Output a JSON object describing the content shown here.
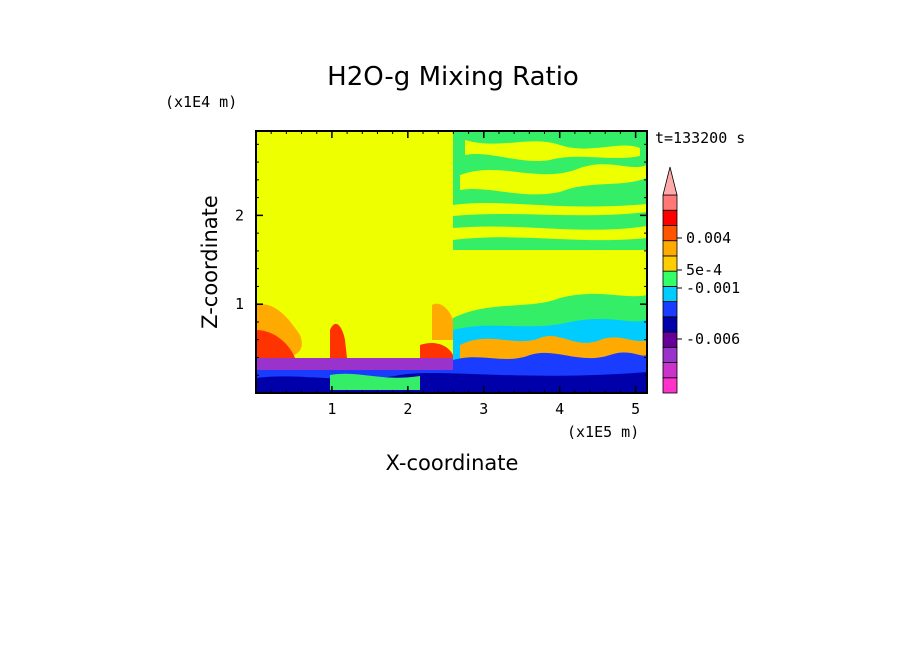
{
  "chart_data": {
    "type": "heatmap",
    "title": "H2O-g Mixing Ratio",
    "xlabel": "X-coordinate",
    "ylabel": "Z-coordinate",
    "x_unit": "(x1E5 m)",
    "y_unit": "(x1E4 m)",
    "time_label": "t=133200 s",
    "xlim": [
      0,
      5.15
    ],
    "ylim": [
      0,
      2.95
    ],
    "x_ticks": [
      "1",
      "2",
      "3",
      "4",
      "5"
    ],
    "x_tick_values": [
      1,
      2,
      3,
      4,
      5
    ],
    "y_ticks": [
      "1",
      "2"
    ],
    "y_tick_values": [
      1,
      2
    ],
    "colorbar": {
      "levels": [
        "#ff33cc",
        "#cc33cc",
        "#9933cc",
        "#660099",
        "#0000aa",
        "#1a3cff",
        "#00ccff",
        "#33ff66",
        "#ffcc00",
        "#ffaa00",
        "#ff5500",
        "#ff0000",
        "#ff7777",
        "#ffaaaa"
      ],
      "labels": [
        "0.004",
        "5e-4",
        "-0.001",
        "-0.006"
      ]
    }
  }
}
